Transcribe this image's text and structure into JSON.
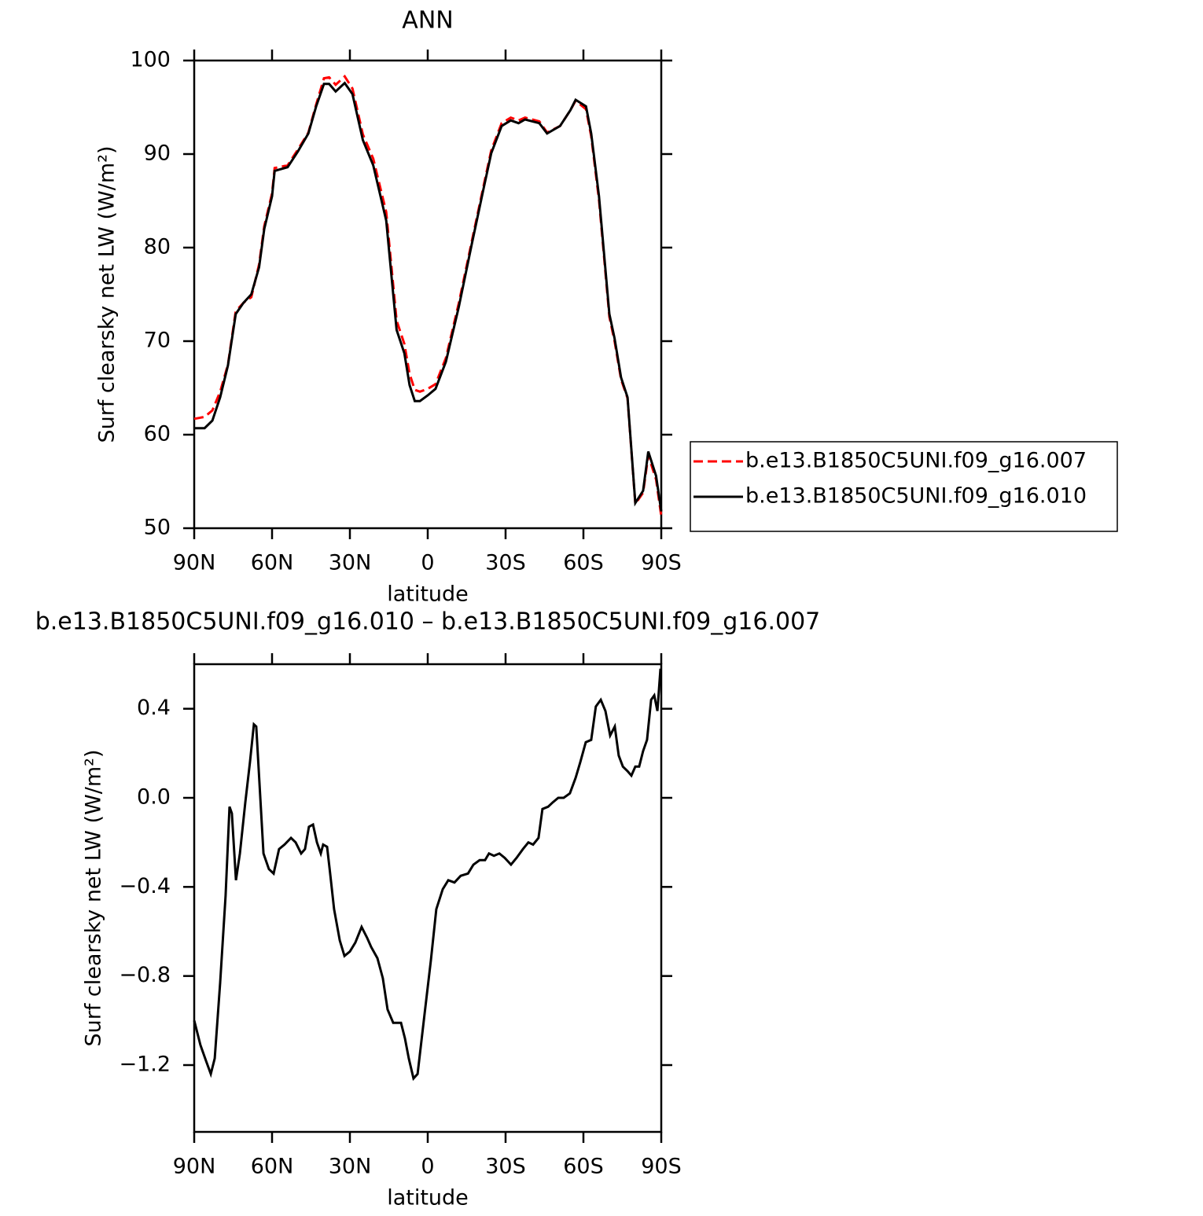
{
  "chart_data": [
    {
      "type": "line",
      "title": "ANN",
      "x_label": "latitude",
      "y_label": "Surf clearsky net LW (W/m²)",
      "xlim": [
        90,
        -90
      ],
      "xticks": [
        {
          "value": 90,
          "label": "90N"
        },
        {
          "value": 60,
          "label": "60N"
        },
        {
          "value": 30,
          "label": "30N"
        },
        0,
        {
          "value": -30,
          "label": "30S"
        },
        {
          "value": -60,
          "label": "60S"
        },
        {
          "value": -90,
          "label": "90S"
        }
      ],
      "ylim": [
        50,
        100
      ],
      "yticks": [
        50,
        60,
        70,
        80,
        90,
        100
      ],
      "legend": "outside-right",
      "x": [
        90,
        86,
        83,
        80,
        77,
        74,
        71,
        68,
        65,
        63,
        60,
        59,
        54,
        50,
        46,
        43,
        40,
        38,
        35.5,
        32,
        29,
        25,
        21,
        16,
        12,
        9,
        7,
        5,
        3,
        0,
        -3,
        -7,
        -12,
        -17,
        -21.5,
        -24.5,
        -28.5,
        -32,
        -35,
        -37.5,
        -43,
        -46,
        -51,
        -55,
        -57,
        -61,
        -63,
        -66,
        -70,
        -72,
        -74.5,
        -77,
        -80,
        -83,
        -85,
        -88,
        -90
      ],
      "series": [
        {
          "name": "b.e13.B1850C5UNI.f09_g16.007",
          "color": "#ff0000",
          "style": "dashed",
          "values": [
            61.7,
            61.9,
            62.6,
            64.6,
            67.5,
            73.2,
            74.1,
            74.7,
            78.2,
            82.3,
            85.8,
            88.5,
            88.8,
            90.5,
            92.3,
            95.3,
            98.1,
            98.2,
            97.4,
            98.3,
            97,
            92.1,
            89.5,
            83.8,
            72.2,
            69.7,
            66.5,
            64.8,
            64.6,
            64.9,
            65.4,
            68.2,
            74.1,
            80.7,
            86.6,
            90.4,
            93.3,
            93.9,
            93.6,
            93.9,
            93.5,
            92.3,
            93,
            94.7,
            95.7,
            94.8,
            91.9,
            85.1,
            72.6,
            70,
            65.9,
            63.9,
            52.6,
            53.8,
            57.8,
            55.2,
            51.3
          ]
        },
        {
          "name": "b.e13.B1850C5UNI.f09_g16.010",
          "color": "#000000",
          "style": "solid",
          "values": [
            60.7,
            60.7,
            61.5,
            64,
            67.4,
            72.9,
            74.1,
            75,
            77.9,
            82,
            85.5,
            88.2,
            88.6,
            90.3,
            92.2,
            95.1,
            97.5,
            97.5,
            96.7,
            97.6,
            96.4,
            91.5,
            88.8,
            82.9,
            71.2,
            68.7,
            65.3,
            63.6,
            63.6,
            64.2,
            64.9,
            67.8,
            73.7,
            80.4,
            86.3,
            90.1,
            93,
            93.6,
            93.3,
            93.7,
            93.3,
            92.2,
            93,
            94.7,
            95.8,
            95.1,
            92.2,
            85.5,
            72.9,
            70.3,
            66.1,
            64,
            52.7,
            54,
            58.2,
            55.6,
            51.8
          ]
        }
      ]
    },
    {
      "type": "line",
      "title": "b.e13.B1850C5UNI.f09_g16.010 – b.e13.B1850C5UNI.f09_g16.007",
      "x_label": "latitude",
      "y_label": "Surf clearsky net LW (W/m²)",
      "xlim": [
        90,
        -90
      ],
      "xticks": [
        {
          "value": 90,
          "label": "90N"
        },
        {
          "value": 60,
          "label": "60N"
        },
        {
          "value": 30,
          "label": "30N"
        },
        0,
        {
          "value": -30,
          "label": "30S"
        },
        {
          "value": -60,
          "label": "60S"
        },
        {
          "value": -90,
          "label": "90S"
        }
      ],
      "ylim": [
        -1.5,
        0.6
      ],
      "yticks": [
        {
          "value": -1.2,
          "label": "−1.2"
        },
        {
          "value": -0.8,
          "label": "−0.8"
        },
        {
          "value": -0.4,
          "label": "−0.4"
        },
        {
          "value": 0,
          "label": "0.0"
        },
        0.4
      ],
      "x": [
        90,
        87.6,
        85.5,
        83.6,
        82.1,
        80,
        77.9,
        76.4,
        75.5,
        73.9,
        72.4,
        70.3,
        68.5,
        67,
        66.1,
        63.3,
        61.2,
        59.4,
        57.3,
        55.2,
        52.7,
        50.9,
        48.8,
        47.3,
        45.8,
        44.2,
        42.7,
        41.2,
        40.3,
        38.8,
        37.6,
        36.1,
        33.9,
        32.1,
        30,
        27.9,
        25.5,
        23.3,
        21.8,
        19.4,
        17.3,
        15.5,
        13.3,
        10.3,
        8.8,
        7.3,
        5.5,
        3.9,
        1.2,
        -1.2,
        -3.3,
        -5.8,
        -7.9,
        -10.3,
        -12.7,
        -15.5,
        -17.6,
        -20,
        -22.1,
        -23.6,
        -25.5,
        -27.6,
        -29.7,
        -32.1,
        -34.2,
        -36.7,
        -38.8,
        -40.6,
        -42.7,
        -44.2,
        -46.4,
        -48.2,
        -50.3,
        -52.4,
        -54.8,
        -57,
        -58.8,
        -60.9,
        -63,
        -64.8,
        -66.7,
        -68.5,
        -70.3,
        -72.1,
        -73.6,
        -75.2,
        -77,
        -78.5,
        -80,
        -81.5,
        -83,
        -84.5,
        -86.1,
        -87.3,
        -88.5,
        -89.7
      ],
      "series": [
        {
          "color": "#000000",
          "style": "solid",
          "values": [
            -1.0,
            -1.11,
            -1.18,
            -1.24,
            -1.17,
            -0.83,
            -0.44,
            -0.04,
            -0.07,
            -0.37,
            -0.25,
            -0.02,
            0.16,
            0.33,
            0.32,
            -0.25,
            -0.32,
            -0.34,
            -0.23,
            -0.21,
            -0.18,
            -0.2,
            -0.25,
            -0.23,
            -0.13,
            -0.12,
            -0.2,
            -0.25,
            -0.21,
            -0.22,
            -0.34,
            -0.5,
            -0.64,
            -0.71,
            -0.69,
            -0.65,
            -0.58,
            -0.63,
            -0.67,
            -0.72,
            -0.81,
            -0.95,
            -1.01,
            -1.01,
            -1.08,
            -1.17,
            -1.26,
            -1.24,
            -0.97,
            -0.73,
            -0.5,
            -0.41,
            -0.37,
            -0.38,
            -0.35,
            -0.34,
            -0.3,
            -0.28,
            -0.28,
            -0.25,
            -0.26,
            -0.25,
            -0.27,
            -0.3,
            -0.27,
            -0.23,
            -0.2,
            -0.21,
            -0.18,
            -0.05,
            -0.04,
            -0.02,
            0,
            0,
            0.02,
            0.09,
            0.16,
            0.25,
            0.26,
            0.41,
            0.44,
            0.39,
            0.28,
            0.32,
            0.19,
            0.14,
            0.12,
            0.1,
            0.14,
            0.14,
            0.21,
            0.26,
            0.44,
            0.46,
            0.39,
            0.58
          ]
        }
      ]
    }
  ]
}
